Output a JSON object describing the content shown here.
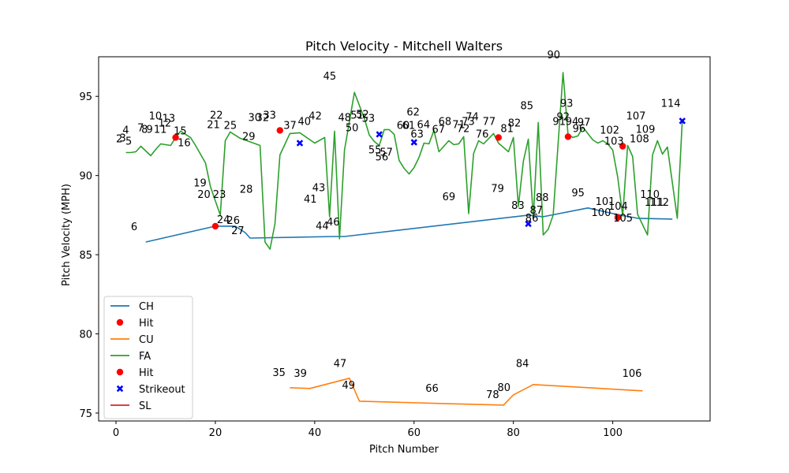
{
  "chart_data": {
    "type": "line",
    "title": "Pitch Velocity - Mitchell Walters",
    "xlabel": "Pitch Number",
    "ylabel": "Pitch Velocity (MPH)",
    "xlim": [
      -3.5,
      119.6
    ],
    "ylim": [
      74.5,
      97.5
    ],
    "xticks": [
      0,
      20,
      40,
      60,
      80,
      100
    ],
    "yticks": [
      75,
      80,
      85,
      90,
      95
    ],
    "legend_position": "lower-left",
    "colors": {
      "CH": "#1f77b4",
      "CU": "#ff7f0e",
      "FA": "#2ca02c",
      "SL": "#d62728",
      "hit": "#ff0000",
      "strikeout": "#0000ff"
    },
    "legend": [
      {
        "label": "CH",
        "kind": "line",
        "color": "#1f77b4"
      },
      {
        "label": "Hit",
        "kind": "dot",
        "color": "#ff0000"
      },
      {
        "label": "CU",
        "kind": "line",
        "color": "#ff7f0e"
      },
      {
        "label": "FA",
        "kind": "line",
        "color": "#2ca02c"
      },
      {
        "label": "Hit",
        "kind": "dot",
        "color": "#ff0000"
      },
      {
        "label": "Strikeout",
        "kind": "x",
        "color": "#0000ff"
      },
      {
        "label": "SL",
        "kind": "line",
        "color": "#d62728"
      }
    ],
    "series": [
      {
        "name": "CH",
        "points": [
          [
            6,
            85.8
          ],
          [
            20,
            86.8
          ],
          [
            24,
            86.8
          ],
          [
            26,
            86.4
          ],
          [
            27,
            86.05
          ],
          [
            44,
            86.15
          ],
          [
            46,
            86.15
          ],
          [
            83,
            87.5
          ],
          [
            86,
            87.4
          ],
          [
            95,
            87.95
          ],
          [
            100,
            87.6
          ],
          [
            105,
            87.3
          ],
          [
            112,
            87.25
          ]
        ]
      },
      {
        "name": "CU",
        "points": [
          [
            35,
            76.6
          ],
          [
            39,
            76.55
          ],
          [
            47,
            77.2
          ],
          [
            49,
            75.75
          ],
          [
            66,
            75.6
          ],
          [
            78,
            75.5
          ],
          [
            80,
            76.15
          ],
          [
            84,
            76.8
          ],
          [
            106,
            76.4
          ]
        ]
      },
      {
        "name": "FA",
        "points": [
          [
            2,
            91.45
          ],
          [
            3,
            91.45
          ],
          [
            4,
            91.5
          ],
          [
            5,
            91.85
          ],
          [
            7,
            91.25
          ],
          [
            8,
            91.65
          ],
          [
            9,
            92.0
          ],
          [
            11,
            91.9
          ],
          [
            12,
            92.4
          ],
          [
            13,
            92.8
          ],
          [
            15,
            92.4
          ],
          [
            16,
            91.9
          ],
          [
            18,
            90.8
          ],
          [
            19,
            89.3
          ],
          [
            21,
            87.5
          ],
          [
            22,
            92.2
          ],
          [
            23,
            92.75
          ],
          [
            25,
            92.35
          ],
          [
            29,
            91.9
          ],
          [
            30,
            85.8
          ],
          [
            31,
            85.35
          ],
          [
            32,
            86.95
          ],
          [
            33,
            91.3
          ],
          [
            35,
            92.65
          ],
          [
            37,
            92.7
          ],
          [
            40,
            92.05
          ],
          [
            42,
            92.4
          ],
          [
            43,
            87.4
          ],
          [
            44,
            92.8
          ],
          [
            45,
            86.0
          ],
          [
            46,
            91.6
          ],
          [
            48,
            95.25
          ],
          [
            50,
            93.6
          ],
          [
            51,
            92.55
          ],
          [
            52,
            92.15
          ],
          [
            53,
            91.9
          ],
          [
            54,
            92.9
          ],
          [
            55,
            92.9
          ],
          [
            56,
            92.6
          ],
          [
            57,
            90.95
          ],
          [
            58,
            90.45
          ],
          [
            59,
            90.1
          ],
          [
            60,
            90.5
          ],
          [
            61,
            91.15
          ],
          [
            62,
            92.05
          ],
          [
            63,
            92.0
          ],
          [
            64,
            92.85
          ],
          [
            65,
            91.5
          ],
          [
            67,
            92.2
          ],
          [
            68,
            91.95
          ],
          [
            69,
            92.0
          ],
          [
            70,
            92.45
          ],
          [
            71,
            87.6
          ],
          [
            72,
            91.4
          ],
          [
            73,
            92.2
          ],
          [
            74,
            92.0
          ],
          [
            76,
            92.65
          ],
          [
            77,
            92.05
          ],
          [
            79,
            91.5
          ],
          [
            80,
            92.4
          ],
          [
            81,
            88.05
          ],
          [
            82,
            90.9
          ],
          [
            83,
            92.3
          ],
          [
            84,
            87.3
          ],
          [
            85,
            93.35
          ],
          [
            86,
            86.25
          ],
          [
            87,
            86.6
          ],
          [
            88,
            87.5
          ],
          [
            90,
            96.5
          ],
          [
            91,
            92.6
          ],
          [
            92,
            92.4
          ],
          [
            93,
            92.5
          ],
          [
            94,
            93.05
          ],
          [
            96,
            92.25
          ],
          [
            97,
            92.05
          ],
          [
            98,
            92.2
          ],
          [
            99,
            92.0
          ],
          [
            100,
            91.6
          ],
          [
            101,
            89.9
          ],
          [
            102,
            87.45
          ],
          [
            103,
            91.9
          ],
          [
            104,
            91.2
          ],
          [
            105,
            87.55
          ],
          [
            107,
            86.25
          ],
          [
            108,
            91.3
          ],
          [
            109,
            92.2
          ],
          [
            110,
            91.35
          ],
          [
            111,
            91.8
          ],
          [
            113,
            87.3
          ],
          [
            114,
            93.45
          ]
        ]
      },
      {
        "name": "SL",
        "points": []
      }
    ],
    "hits": [
      [
        12,
        92.4
      ],
      [
        20,
        86.8
      ],
      [
        33,
        92.85
      ],
      [
        77,
        92.4
      ],
      [
        91,
        92.45
      ],
      [
        101,
        87.35
      ],
      [
        102,
        91.85
      ]
    ],
    "strikeouts": [
      [
        37,
        92.05
      ],
      [
        53,
        92.6
      ],
      [
        60,
        92.1
      ],
      [
        83,
        86.95
      ],
      [
        114,
        93.45
      ]
    ],
    "annotations": [
      {
        "text": "2",
        "x": 0,
        "y": 92.1
      },
      {
        "text": "3",
        "x": 0.7,
        "y": 92.15
      },
      {
        "text": "4",
        "x": 1.3,
        "y": 92.65
      },
      {
        "text": "5",
        "x": 1.9,
        "y": 91.95
      },
      {
        "text": "6",
        "x": 3,
        "y": 86.55
      },
      {
        "text": "7",
        "x": 4.3,
        "y": 92.8
      },
      {
        "text": "8",
        "x": 5.1,
        "y": 92.7
      },
      {
        "text": "9",
        "x": 6.1,
        "y": 92.7
      },
      {
        "text": "10",
        "x": 6.6,
        "y": 93.55
      },
      {
        "text": "11",
        "x": 7.6,
        "y": 92.7
      },
      {
        "text": "12",
        "x": 8.5,
        "y": 93.1
      },
      {
        "text": "13",
        "x": 9.3,
        "y": 93.4
      },
      {
        "text": "15",
        "x": 11.6,
        "y": 92.6
      },
      {
        "text": "16",
        "x": 12.4,
        "y": 91.85
      },
      {
        "text": "19",
        "x": 15.6,
        "y": 89.3
      },
      {
        "text": "20",
        "x": 16.4,
        "y": 88.6
      },
      {
        "text": "21",
        "x": 18.3,
        "y": 93.0
      },
      {
        "text": "22",
        "x": 18.9,
        "y": 93.6
      },
      {
        "text": "23",
        "x": 19.5,
        "y": 88.6
      },
      {
        "text": "24",
        "x": 20.3,
        "y": 87.0
      },
      {
        "text": "26",
        "x": 22.3,
        "y": 86.95
      },
      {
        "text": "27",
        "x": 23.2,
        "y": 86.3
      },
      {
        "text": "25",
        "x": 21.7,
        "y": 92.95
      },
      {
        "text": "28",
        "x": 24.9,
        "y": 88.9
      },
      {
        "text": "29",
        "x": 25.4,
        "y": 92.25
      },
      {
        "text": "30",
        "x": 26.6,
        "y": 93.45
      },
      {
        "text": "32",
        "x": 28.2,
        "y": 93.45
      },
      {
        "text": "33",
        "x": 29.6,
        "y": 93.6
      },
      {
        "text": "35",
        "x": 31.5,
        "y": 77.35
      },
      {
        "text": "37",
        "x": 33.7,
        "y": 92.95
      },
      {
        "text": "39",
        "x": 35.8,
        "y": 77.3
      },
      {
        "text": "40",
        "x": 36.6,
        "y": 93.2
      },
      {
        "text": "41",
        "x": 37.8,
        "y": 88.3
      },
      {
        "text": "42",
        "x": 38.8,
        "y": 93.55
      },
      {
        "text": "43",
        "x": 39.5,
        "y": 89.0
      },
      {
        "text": "44",
        "x": 40.2,
        "y": 86.6
      },
      {
        "text": "45",
        "x": 41.7,
        "y": 96.05
      },
      {
        "text": "46",
        "x": 42.4,
        "y": 86.85
      },
      {
        "text": "47",
        "x": 43.8,
        "y": 77.9
      },
      {
        "text": "48",
        "x": 44.7,
        "y": 93.45
      },
      {
        "text": "49",
        "x": 45.5,
        "y": 76.55
      },
      {
        "text": "50",
        "x": 46.2,
        "y": 92.8
      },
      {
        "text": "51",
        "x": 47.2,
        "y": 93.6
      },
      {
        "text": "52",
        "x": 48.3,
        "y": 93.65
      },
      {
        "text": "53",
        "x": 49.5,
        "y": 93.4
      },
      {
        "text": "55",
        "x": 50.8,
        "y": 91.4
      },
      {
        "text": "57",
        "x": 53.1,
        "y": 91.25
      },
      {
        "text": "56",
        "x": 52.2,
        "y": 90.95
      },
      {
        "text": "60",
        "x": 56.5,
        "y": 92.95
      },
      {
        "text": "61",
        "x": 57.6,
        "y": 92.95
      },
      {
        "text": "62",
        "x": 58.5,
        "y": 93.8
      },
      {
        "text": "63",
        "x": 59.3,
        "y": 92.4
      },
      {
        "text": "64",
        "x": 60.6,
        "y": 93.0
      },
      {
        "text": "66",
        "x": 62.3,
        "y": 76.35
      },
      {
        "text": "67",
        "x": 63.6,
        "y": 92.7
      },
      {
        "text": "68",
        "x": 64.9,
        "y": 93.2
      },
      {
        "text": "69",
        "x": 65.7,
        "y": 88.45
      },
      {
        "text": "71",
        "x": 67.7,
        "y": 93.0
      },
      {
        "text": "72",
        "x": 68.6,
        "y": 92.75
      },
      {
        "text": "73",
        "x": 69.6,
        "y": 93.2
      },
      {
        "text": "74",
        "x": 70.4,
        "y": 93.5
      },
      {
        "text": "76",
        "x": 72.4,
        "y": 92.4
      },
      {
        "text": "77",
        "x": 73.8,
        "y": 93.2
      },
      {
        "text": "78",
        "x": 74.5,
        "y": 75.95
      },
      {
        "text": "79",
        "x": 75.5,
        "y": 88.95
      },
      {
        "text": "80",
        "x": 76.8,
        "y": 76.4
      },
      {
        "text": "81",
        "x": 77.4,
        "y": 92.75
      },
      {
        "text": "82",
        "x": 78.9,
        "y": 93.1
      },
      {
        "text": "83",
        "x": 79.6,
        "y": 87.9
      },
      {
        "text": "84",
        "x": 80.5,
        "y": 77.9
      },
      {
        "text": "85",
        "x": 81.4,
        "y": 94.2
      },
      {
        "text": "86",
        "x": 82.4,
        "y": 87.1
      },
      {
        "text": "87",
        "x": 83.3,
        "y": 87.6
      },
      {
        "text": "88",
        "x": 84.5,
        "y": 88.4
      },
      {
        "text": "90",
        "x": 86.8,
        "y": 97.4
      },
      {
        "text": "91",
        "x": 87.9,
        "y": 93.2
      },
      {
        "text": "92",
        "x": 88.7,
        "y": 93.5
      },
      {
        "text": "93",
        "x": 89.4,
        "y": 94.35
      },
      {
        "text": "94",
        "x": 90.5,
        "y": 93.2
      },
      {
        "text": "96",
        "x": 91.9,
        "y": 92.75
      },
      {
        "text": "97",
        "x": 92.9,
        "y": 93.15
      },
      {
        "text": "95",
        "x": 91.7,
        "y": 88.7
      },
      {
        "text": "100",
        "x": 95.7,
        "y": 87.45
      },
      {
        "text": "101",
        "x": 96.5,
        "y": 88.15
      },
      {
        "text": "102",
        "x": 97.4,
        "y": 92.65
      },
      {
        "text": "103",
        "x": 98.3,
        "y": 91.95
      },
      {
        "text": "104",
        "x": 99.1,
        "y": 87.85
      },
      {
        "text": "105",
        "x": 100.1,
        "y": 87.1
      },
      {
        "text": "106",
        "x": 101.9,
        "y": 77.3
      },
      {
        "text": "107",
        "x": 102.7,
        "y": 93.55
      },
      {
        "text": "108",
        "x": 103.4,
        "y": 92.1
      },
      {
        "text": "109",
        "x": 104.6,
        "y": 92.7
      },
      {
        "text": "110",
        "x": 105.5,
        "y": 88.6
      },
      {
        "text": "111",
        "x": 106.4,
        "y": 88.1
      },
      {
        "text": "112",
        "x": 107.4,
        "y": 88.1
      },
      {
        "text": "114",
        "x": 109.7,
        "y": 94.35
      }
    ]
  }
}
